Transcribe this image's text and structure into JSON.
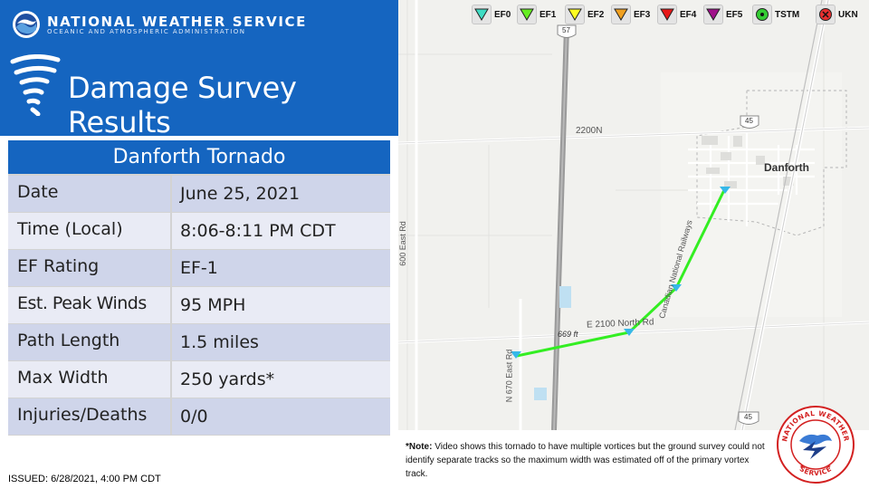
{
  "header": {
    "agency_name": "NATIONAL WEATHER SERVICE",
    "agency_sub": "OCEANIC AND ATMOSPHERIC ADMINISTRATION",
    "title": "Damage Survey Results",
    "bg_color": "#1565c0"
  },
  "table": {
    "title": "Danforth Tornado",
    "rows": [
      {
        "label": "Date",
        "value": "June 25, 2021"
      },
      {
        "label": "Time (Local)",
        "value": "8:06-8:11 PM CDT"
      },
      {
        "label": "EF Rating",
        "value": "EF-1"
      },
      {
        "label": "Est. Peak Winds",
        "value": "95 MPH"
      },
      {
        "label": "Path Length",
        "value": "1.5 miles"
      },
      {
        "label": "Max Width",
        "value": "250 yards*"
      },
      {
        "label": "Injuries/Deaths",
        "value": "0/0"
      }
    ]
  },
  "issued": "ISSUED: 6/28/2021, 4:00 PM CDT",
  "legend": [
    {
      "label": "EF0",
      "color": "#3fdcc4",
      "icon": "triangle-down-icon"
    },
    {
      "label": "EF1",
      "color": "#66ee22",
      "icon": "triangle-down-icon"
    },
    {
      "label": "EF2",
      "color": "#ffff22",
      "icon": "triangle-down-icon"
    },
    {
      "label": "EF3",
      "color": "#f0a020",
      "icon": "triangle-down-icon"
    },
    {
      "label": "EF4",
      "color": "#e81818",
      "icon": "triangle-down-icon"
    },
    {
      "label": "EF5",
      "color": "#a0108a",
      "icon": "triangle-down-icon"
    },
    {
      "label": "TSTM",
      "color": "#33cc33",
      "icon": "circle-dot-icon"
    },
    {
      "label": "UKN",
      "color": "#e83030",
      "icon": "circle-x-icon"
    }
  ],
  "map": {
    "town": "Danforth",
    "road_2200n": "2200N",
    "road_e2100": "E 2100 North Rd",
    "road_600e": "600 East Rd",
    "road_n670": "N 670 East Rd",
    "railway": "Canadian National Railways",
    "route_57": "57",
    "route_45": "45",
    "distance": "669 ft",
    "track_color": "#33ee22"
  },
  "note": {
    "prefix": "*Note:",
    "text": " Video shows this tornado to have multiple vortices but the ground survey could not identify separate tracks so the maximum width was estimated off of the primary vortex track."
  }
}
